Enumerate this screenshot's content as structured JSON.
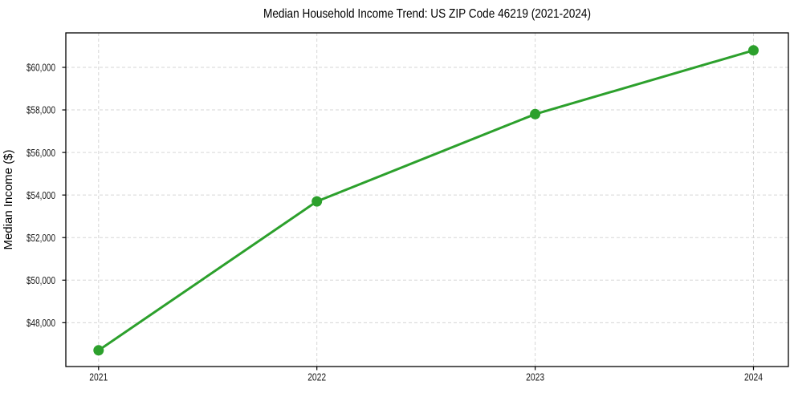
{
  "chart_data": {
    "type": "line",
    "title": "Median Household Income Trend: US ZIP Code 46219 (2021-2024)",
    "xlabel": "",
    "ylabel": "Median Income ($)",
    "x": [
      2021,
      2022,
      2023,
      2024
    ],
    "series": [
      {
        "name": "Median Household Income",
        "values": [
          46700,
          53700,
          57800,
          60800
        ],
        "color": "#2ca02c",
        "marker": "circle",
        "marker_size": 13,
        "line_width": 3
      }
    ],
    "x_ticks": {
      "values": [
        2021,
        2022,
        2023,
        2024
      ],
      "labels": [
        "2021",
        "2022",
        "2023",
        "2024"
      ]
    },
    "y_ticks": {
      "values": [
        48000,
        50000,
        52000,
        54000,
        56000,
        58000,
        60000
      ],
      "labels": [
        "$48,000",
        "$50,000",
        "$52,000",
        "$54,000",
        "$56,000",
        "$58,000",
        "$60,000"
      ]
    },
    "xlim": [
      2020.85,
      2024.16
    ],
    "ylim": [
      45940,
      61620
    ],
    "grid": true,
    "grid_style": "dashed",
    "legend": false,
    "colors": {
      "line": "#2ca02c",
      "grid": "#d6d6d6",
      "axis": "#000000",
      "tick_label": "#1a1a1a",
      "background": "#ffffff"
    }
  }
}
